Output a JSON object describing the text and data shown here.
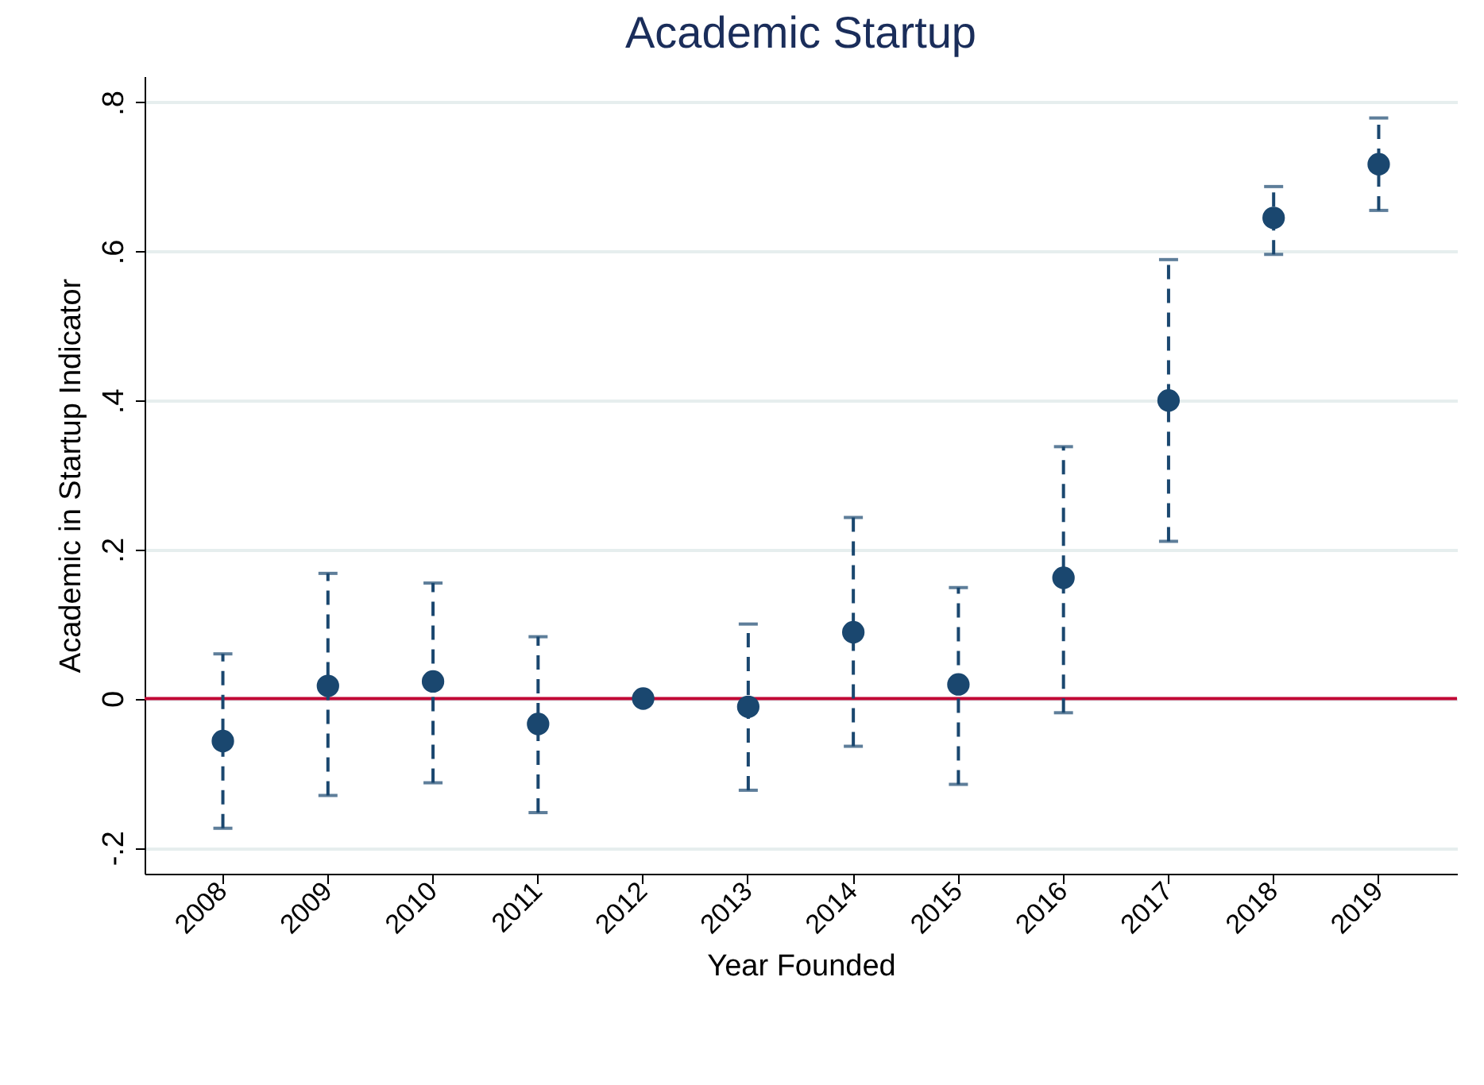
{
  "chart_data": {
    "type": "scatter",
    "title": "Academic Startup",
    "xlabel": "Year Founded",
    "ylabel": "Academic in Startup Indicator",
    "categories": [
      "2008",
      "2009",
      "2010",
      "2011",
      "2012",
      "2013",
      "2014",
      "2015",
      "2016",
      "2017",
      "2018",
      "2019"
    ],
    "series": [
      {
        "color": "#1a476f",
        "values": [
          -0.057,
          0.017,
          0.023,
          -0.034,
          0,
          -0.011,
          0.089,
          0.019,
          0.162,
          0.4,
          0.645,
          0.717
        ],
        "errors": [
          [
            -0.174,
            0.06
          ],
          [
            -0.13,
            0.168
          ],
          [
            -0.113,
            0.155
          ],
          [
            -0.153,
            0.083
          ],
          null,
          [
            -0.123,
            0.1
          ],
          [
            -0.064,
            0.243
          ],
          [
            -0.115,
            0.149
          ],
          [
            -0.019,
            0.338
          ],
          [
            0.211,
            0.589
          ],
          [
            0.596,
            0.687
          ],
          [
            0.655,
            0.779
          ]
        ]
      }
    ],
    "ylim": [
      -0.235,
      0.835
    ],
    "yticks": [
      {
        "value": -0.2,
        "label": "-.2"
      },
      0,
      {
        "value": 0.2,
        "label": ".2"
      },
      {
        "value": 0.4,
        "label": ".4"
      },
      {
        "value": 0.6,
        "label": ".6"
      },
      {
        "value": 0.8,
        "label": ".8"
      }
    ],
    "grid": "y",
    "marker": "circle",
    "ref_lines": [
      {
        "axis": "y",
        "value": 0,
        "color": "#c10534"
      }
    ]
  }
}
